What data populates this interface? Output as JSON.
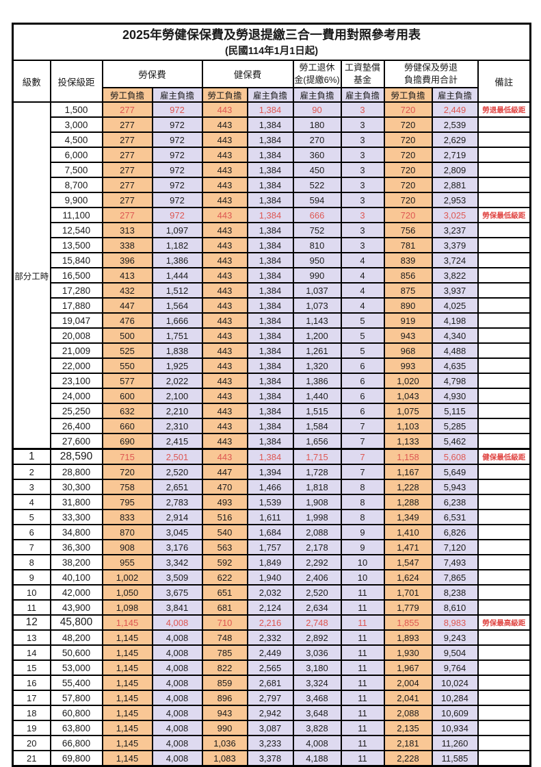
{
  "title": "2025年勞健保保費及勞退提繳三合一費用對照參考用表",
  "subtitle": "(民國114年1月1日起)",
  "colors": {
    "employee_bg": "#F9C795",
    "employer_bg": "#DEDAF0",
    "highlight_red": "#DD5752",
    "remark_red": "#E04643",
    "border": "#000000"
  },
  "header": {
    "level": "級數",
    "bracket": "投保級距",
    "labor_insurance": "勞保費",
    "health_insurance": "健保費",
    "pension_line1": "勞工退休",
    "pension_line2": "金(提繳6%)",
    "wage_fund_line1": "工資墊償",
    "wage_fund_line2": "基金",
    "total_line1": "勞健保及勞退",
    "total_line2": "負擔費用合計",
    "employee": "勞工負擔",
    "employer": "雇主負擔",
    "remark": "備註"
  },
  "part_time_label": "部分工時",
  "rows": [
    {
      "level": "",
      "bracket": "1,500",
      "li_emp": "277",
      "li_er": "972",
      "hi_emp": "443",
      "hi_er": "1,384",
      "pension": "90",
      "fund": "3",
      "tot_emp": "720",
      "tot_er": "2,449",
      "remark": "勞退最低級距",
      "red": true,
      "emph": false,
      "sec": false
    },
    {
      "level": "",
      "bracket": "3,000",
      "li_emp": "277",
      "li_er": "972",
      "hi_emp": "443",
      "hi_er": "1,384",
      "pension": "180",
      "fund": "3",
      "tot_emp": "720",
      "tot_er": "2,539",
      "remark": "",
      "red": false,
      "emph": false,
      "sec": false
    },
    {
      "level": "",
      "bracket": "4,500",
      "li_emp": "277",
      "li_er": "972",
      "hi_emp": "443",
      "hi_er": "1,384",
      "pension": "270",
      "fund": "3",
      "tot_emp": "720",
      "tot_er": "2,629",
      "remark": "",
      "red": false,
      "emph": false,
      "sec": false
    },
    {
      "level": "",
      "bracket": "6,000",
      "li_emp": "277",
      "li_er": "972",
      "hi_emp": "443",
      "hi_er": "1,384",
      "pension": "360",
      "fund": "3",
      "tot_emp": "720",
      "tot_er": "2,719",
      "remark": "",
      "red": false,
      "emph": false,
      "sec": false
    },
    {
      "level": "",
      "bracket": "7,500",
      "li_emp": "277",
      "li_er": "972",
      "hi_emp": "443",
      "hi_er": "1,384",
      "pension": "450",
      "fund": "3",
      "tot_emp": "720",
      "tot_er": "2,809",
      "remark": "",
      "red": false,
      "emph": false,
      "sec": false
    },
    {
      "level": "",
      "bracket": "8,700",
      "li_emp": "277",
      "li_er": "972",
      "hi_emp": "443",
      "hi_er": "1,384",
      "pension": "522",
      "fund": "3",
      "tot_emp": "720",
      "tot_er": "2,881",
      "remark": "",
      "red": false,
      "emph": false,
      "sec": false
    },
    {
      "level": "",
      "bracket": "9,900",
      "li_emp": "277",
      "li_er": "972",
      "hi_emp": "443",
      "hi_er": "1,384",
      "pension": "594",
      "fund": "3",
      "tot_emp": "720",
      "tot_er": "2,953",
      "remark": "",
      "red": false,
      "emph": false,
      "sec": false
    },
    {
      "level": "",
      "bracket": "11,100",
      "li_emp": "277",
      "li_er": "972",
      "hi_emp": "443",
      "hi_er": "1,384",
      "pension": "666",
      "fund": "3",
      "tot_emp": "720",
      "tot_er": "3,025",
      "remark": "勞保最低級距",
      "red": true,
      "emph": false,
      "sec": false
    },
    {
      "level": "",
      "bracket": "12,540",
      "li_emp": "313",
      "li_er": "1,097",
      "hi_emp": "443",
      "hi_er": "1,384",
      "pension": "752",
      "fund": "3",
      "tot_emp": "756",
      "tot_er": "3,237",
      "remark": "",
      "red": false,
      "emph": false,
      "sec": false
    },
    {
      "level": "",
      "bracket": "13,500",
      "li_emp": "338",
      "li_er": "1,182",
      "hi_emp": "443",
      "hi_er": "1,384",
      "pension": "810",
      "fund": "3",
      "tot_emp": "781",
      "tot_er": "3,379",
      "remark": "",
      "red": false,
      "emph": false,
      "sec": false
    },
    {
      "level": "",
      "bracket": "15,840",
      "li_emp": "396",
      "li_er": "1,386",
      "hi_emp": "443",
      "hi_er": "1,384",
      "pension": "950",
      "fund": "4",
      "tot_emp": "839",
      "tot_er": "3,724",
      "remark": "",
      "red": false,
      "emph": false,
      "sec": false
    },
    {
      "level": "",
      "bracket": "16,500",
      "li_emp": "413",
      "li_er": "1,444",
      "hi_emp": "443",
      "hi_er": "1,384",
      "pension": "990",
      "fund": "4",
      "tot_emp": "856",
      "tot_er": "3,822",
      "remark": "",
      "red": false,
      "emph": false,
      "sec": false
    },
    {
      "level": "",
      "bracket": "17,280",
      "li_emp": "432",
      "li_er": "1,512",
      "hi_emp": "443",
      "hi_er": "1,384",
      "pension": "1,037",
      "fund": "4",
      "tot_emp": "875",
      "tot_er": "3,937",
      "remark": "",
      "red": false,
      "emph": false,
      "sec": false
    },
    {
      "level": "",
      "bracket": "17,880",
      "li_emp": "447",
      "li_er": "1,564",
      "hi_emp": "443",
      "hi_er": "1,384",
      "pension": "1,073",
      "fund": "4",
      "tot_emp": "890",
      "tot_er": "4,025",
      "remark": "",
      "red": false,
      "emph": false,
      "sec": false
    },
    {
      "level": "",
      "bracket": "19,047",
      "li_emp": "476",
      "li_er": "1,666",
      "hi_emp": "443",
      "hi_er": "1,384",
      "pension": "1,143",
      "fund": "5",
      "tot_emp": "919",
      "tot_er": "4,198",
      "remark": "",
      "red": false,
      "emph": false,
      "sec": false
    },
    {
      "level": "",
      "bracket": "20,008",
      "li_emp": "500",
      "li_er": "1,751",
      "hi_emp": "443",
      "hi_er": "1,384",
      "pension": "1,200",
      "fund": "5",
      "tot_emp": "943",
      "tot_er": "4,340",
      "remark": "",
      "red": false,
      "emph": false,
      "sec": false
    },
    {
      "level": "",
      "bracket": "21,009",
      "li_emp": "525",
      "li_er": "1,838",
      "hi_emp": "443",
      "hi_er": "1,384",
      "pension": "1,261",
      "fund": "5",
      "tot_emp": "968",
      "tot_er": "4,488",
      "remark": "",
      "red": false,
      "emph": false,
      "sec": false
    },
    {
      "level": "",
      "bracket": "22,000",
      "li_emp": "550",
      "li_er": "1,925",
      "hi_emp": "443",
      "hi_er": "1,384",
      "pension": "1,320",
      "fund": "6",
      "tot_emp": "993",
      "tot_er": "4,635",
      "remark": "",
      "red": false,
      "emph": false,
      "sec": false
    },
    {
      "level": "",
      "bracket": "23,100",
      "li_emp": "577",
      "li_er": "2,022",
      "hi_emp": "443",
      "hi_er": "1,384",
      "pension": "1,386",
      "fund": "6",
      "tot_emp": "1,020",
      "tot_er": "4,798",
      "remark": "",
      "red": false,
      "emph": false,
      "sec": false
    },
    {
      "level": "",
      "bracket": "24,000",
      "li_emp": "600",
      "li_er": "2,100",
      "hi_emp": "443",
      "hi_er": "1,384",
      "pension": "1,440",
      "fund": "6",
      "tot_emp": "1,043",
      "tot_er": "4,930",
      "remark": "",
      "red": false,
      "emph": false,
      "sec": false
    },
    {
      "level": "",
      "bracket": "25,250",
      "li_emp": "632",
      "li_er": "2,210",
      "hi_emp": "443",
      "hi_er": "1,384",
      "pension": "1,515",
      "fund": "6",
      "tot_emp": "1,075",
      "tot_er": "5,115",
      "remark": "",
      "red": false,
      "emph": false,
      "sec": false
    },
    {
      "level": "",
      "bracket": "26,400",
      "li_emp": "660",
      "li_er": "2,310",
      "hi_emp": "443",
      "hi_er": "1,384",
      "pension": "1,584",
      "fund": "7",
      "tot_emp": "1,103",
      "tot_er": "5,285",
      "remark": "",
      "red": false,
      "emph": false,
      "sec": false
    },
    {
      "level": "",
      "bracket": "27,600",
      "li_emp": "690",
      "li_er": "2,415",
      "hi_emp": "443",
      "hi_er": "1,384",
      "pension": "1,656",
      "fund": "7",
      "tot_emp": "1,133",
      "tot_er": "5,462",
      "remark": "",
      "red": false,
      "emph": false,
      "sec": false
    },
    {
      "level": "1",
      "bracket": "28,590",
      "li_emp": "715",
      "li_er": "2,501",
      "hi_emp": "443",
      "hi_er": "1,384",
      "pension": "1,715",
      "fund": "7",
      "tot_emp": "1,158",
      "tot_er": "5,608",
      "remark": "健保最低級距",
      "red": true,
      "emph": true,
      "sec": true
    },
    {
      "level": "2",
      "bracket": "28,800",
      "li_emp": "720",
      "li_er": "2,520",
      "hi_emp": "447",
      "hi_er": "1,394",
      "pension": "1,728",
      "fund": "7",
      "tot_emp": "1,167",
      "tot_er": "5,649",
      "remark": "",
      "red": false,
      "emph": false,
      "sec": false
    },
    {
      "level": "3",
      "bracket": "30,300",
      "li_emp": "758",
      "li_er": "2,651",
      "hi_emp": "470",
      "hi_er": "1,466",
      "pension": "1,818",
      "fund": "8",
      "tot_emp": "1,228",
      "tot_er": "5,943",
      "remark": "",
      "red": false,
      "emph": false,
      "sec": false
    },
    {
      "level": "4",
      "bracket": "31,800",
      "li_emp": "795",
      "li_er": "2,783",
      "hi_emp": "493",
      "hi_er": "1,539",
      "pension": "1,908",
      "fund": "8",
      "tot_emp": "1,288",
      "tot_er": "6,238",
      "remark": "",
      "red": false,
      "emph": false,
      "sec": false
    },
    {
      "level": "5",
      "bracket": "33,300",
      "li_emp": "833",
      "li_er": "2,914",
      "hi_emp": "516",
      "hi_er": "1,611",
      "pension": "1,998",
      "fund": "8",
      "tot_emp": "1,349",
      "tot_er": "6,531",
      "remark": "",
      "red": false,
      "emph": false,
      "sec": false
    },
    {
      "level": "6",
      "bracket": "34,800",
      "li_emp": "870",
      "li_er": "3,045",
      "hi_emp": "540",
      "hi_er": "1,684",
      "pension": "2,088",
      "fund": "9",
      "tot_emp": "1,410",
      "tot_er": "6,826",
      "remark": "",
      "red": false,
      "emph": false,
      "sec": false
    },
    {
      "level": "7",
      "bracket": "36,300",
      "li_emp": "908",
      "li_er": "3,176",
      "hi_emp": "563",
      "hi_er": "1,757",
      "pension": "2,178",
      "fund": "9",
      "tot_emp": "1,471",
      "tot_er": "7,120",
      "remark": "",
      "red": false,
      "emph": false,
      "sec": false
    },
    {
      "level": "8",
      "bracket": "38,200",
      "li_emp": "955",
      "li_er": "3,342",
      "hi_emp": "592",
      "hi_er": "1,849",
      "pension": "2,292",
      "fund": "10",
      "tot_emp": "1,547",
      "tot_er": "7,493",
      "remark": "",
      "red": false,
      "emph": false,
      "sec": false
    },
    {
      "level": "9",
      "bracket": "40,100",
      "li_emp": "1,002",
      "li_er": "3,509",
      "hi_emp": "622",
      "hi_er": "1,940",
      "pension": "2,406",
      "fund": "10",
      "tot_emp": "1,624",
      "tot_er": "7,865",
      "remark": "",
      "red": false,
      "emph": false,
      "sec": false
    },
    {
      "level": "10",
      "bracket": "42,000",
      "li_emp": "1,050",
      "li_er": "3,675",
      "hi_emp": "651",
      "hi_er": "2,032",
      "pension": "2,520",
      "fund": "11",
      "tot_emp": "1,701",
      "tot_er": "8,238",
      "remark": "",
      "red": false,
      "emph": false,
      "sec": false
    },
    {
      "level": "11",
      "bracket": "43,900",
      "li_emp": "1,098",
      "li_er": "3,841",
      "hi_emp": "681",
      "hi_er": "2,124",
      "pension": "2,634",
      "fund": "11",
      "tot_emp": "1,779",
      "tot_er": "8,610",
      "remark": "",
      "red": false,
      "emph": false,
      "sec": false
    },
    {
      "level": "12",
      "bracket": "45,800",
      "li_emp": "1,145",
      "li_er": "4,008",
      "hi_emp": "710",
      "hi_er": "2,216",
      "pension": "2,748",
      "fund": "11",
      "tot_emp": "1,855",
      "tot_er": "8,983",
      "remark": "勞保最高級距",
      "red": true,
      "emph": true,
      "sec": false
    },
    {
      "level": "13",
      "bracket": "48,200",
      "li_emp": "1,145",
      "li_er": "4,008",
      "hi_emp": "748",
      "hi_er": "2,332",
      "pension": "2,892",
      "fund": "11",
      "tot_emp": "1,893",
      "tot_er": "9,243",
      "remark": "",
      "red": false,
      "emph": false,
      "sec": false
    },
    {
      "level": "14",
      "bracket": "50,600",
      "li_emp": "1,145",
      "li_er": "4,008",
      "hi_emp": "785",
      "hi_er": "2,449",
      "pension": "3,036",
      "fund": "11",
      "tot_emp": "1,930",
      "tot_er": "9,504",
      "remark": "",
      "red": false,
      "emph": false,
      "sec": false
    },
    {
      "level": "15",
      "bracket": "53,000",
      "li_emp": "1,145",
      "li_er": "4,008",
      "hi_emp": "822",
      "hi_er": "2,565",
      "pension": "3,180",
      "fund": "11",
      "tot_emp": "1,967",
      "tot_er": "9,764",
      "remark": "",
      "red": false,
      "emph": false,
      "sec": false
    },
    {
      "level": "16",
      "bracket": "55,400",
      "li_emp": "1,145",
      "li_er": "4,008",
      "hi_emp": "859",
      "hi_er": "2,681",
      "pension": "3,324",
      "fund": "11",
      "tot_emp": "2,004",
      "tot_er": "10,024",
      "remark": "",
      "red": false,
      "emph": false,
      "sec": false
    },
    {
      "level": "17",
      "bracket": "57,800",
      "li_emp": "1,145",
      "li_er": "4,008",
      "hi_emp": "896",
      "hi_er": "2,797",
      "pension": "3,468",
      "fund": "11",
      "tot_emp": "2,041",
      "tot_er": "10,284",
      "remark": "",
      "red": false,
      "emph": false,
      "sec": false
    },
    {
      "level": "18",
      "bracket": "60,800",
      "li_emp": "1,145",
      "li_er": "4,008",
      "hi_emp": "943",
      "hi_er": "2,942",
      "pension": "3,648",
      "fund": "11",
      "tot_emp": "2,088",
      "tot_er": "10,609",
      "remark": "",
      "red": false,
      "emph": false,
      "sec": false
    },
    {
      "level": "19",
      "bracket": "63,800",
      "li_emp": "1,145",
      "li_er": "4,008",
      "hi_emp": "990",
      "hi_er": "3,087",
      "pension": "3,828",
      "fund": "11",
      "tot_emp": "2,135",
      "tot_er": "10,934",
      "remark": "",
      "red": false,
      "emph": false,
      "sec": false
    },
    {
      "level": "20",
      "bracket": "66,800",
      "li_emp": "1,145",
      "li_er": "4,008",
      "hi_emp": "1,036",
      "hi_er": "3,233",
      "pension": "4,008",
      "fund": "11",
      "tot_emp": "2,181",
      "tot_er": "11,260",
      "remark": "",
      "red": false,
      "emph": false,
      "sec": false
    },
    {
      "level": "21",
      "bracket": "69,800",
      "li_emp": "1,145",
      "li_er": "4,008",
      "hi_emp": "1,083",
      "hi_er": "3,378",
      "pension": "4,188",
      "fund": "11",
      "tot_emp": "2,228",
      "tot_er": "11,585",
      "remark": "",
      "red": false,
      "emph": false,
      "sec": false
    }
  ]
}
